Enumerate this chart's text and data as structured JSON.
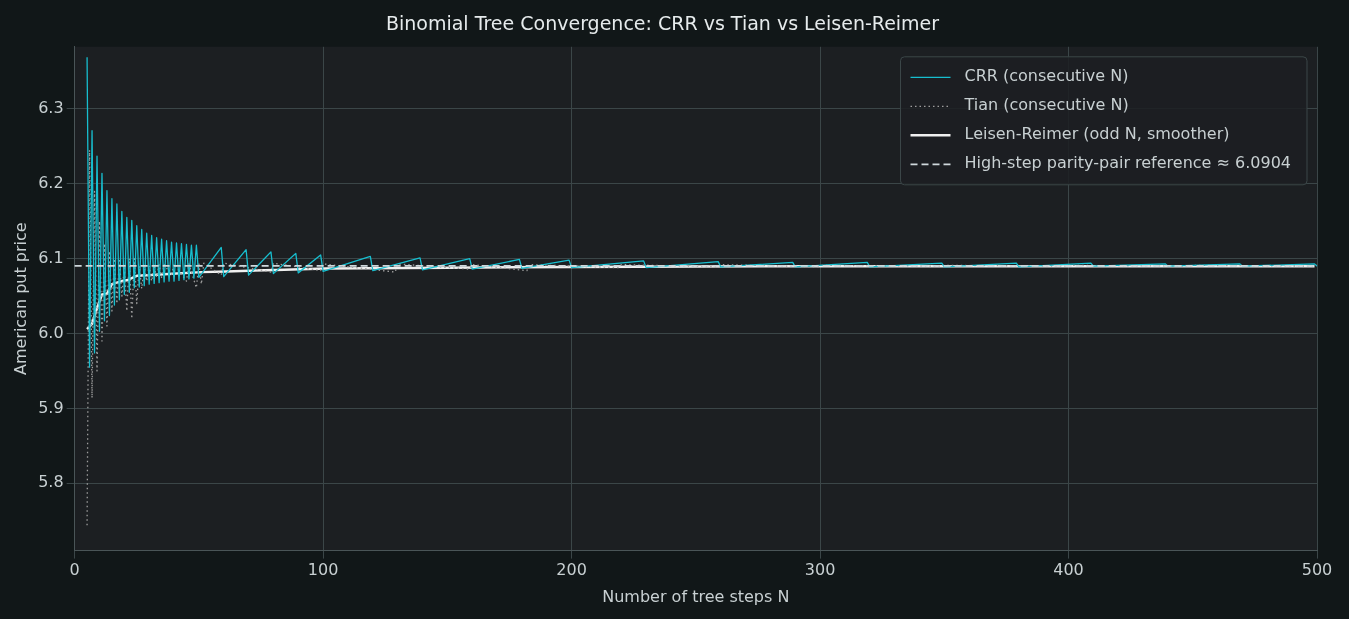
{
  "chart_data": {
    "type": "line",
    "title": "Binomial Tree Convergence: CRR vs Tian vs Leisen-Reimer",
    "xlabel": "Number of tree steps N",
    "ylabel": "American put price",
    "xlim": [
      0,
      500
    ],
    "xticks": [
      0,
      100,
      200,
      300,
      400,
      500
    ],
    "ylim": [
      5.71,
      6.383
    ],
    "yticks": [
      5.8,
      5.9,
      {
        "value": 6.0,
        "label": "6.0"
      },
      6.1,
      6.2,
      6.3
    ],
    "grid": true,
    "legend": "top right",
    "marker": "none",
    "series": [
      {
        "name": "CRR (consecutive N)",
        "color": "#17becf",
        "line_style": "solid",
        "x": [
          5,
          6,
          7,
          8,
          9,
          10,
          11,
          12,
          13,
          14,
          15,
          16,
          17,
          18,
          19,
          20,
          21,
          22,
          23,
          24,
          25,
          26,
          27,
          28,
          29,
          30,
          31,
          32,
          33,
          34,
          35,
          36,
          37,
          38,
          39,
          40,
          41,
          42,
          43,
          44,
          45,
          46,
          47,
          48,
          49,
          50,
          59,
          60,
          69,
          70,
          79,
          80,
          89,
          90,
          99,
          100,
          119,
          120,
          139,
          140,
          159,
          160,
          179,
          180,
          199,
          200,
          229,
          230,
          259,
          260,
          289,
          290,
          319,
          320,
          349,
          350,
          379,
          380,
          409,
          410,
          439,
          440,
          469,
          470,
          499,
          500
        ],
        "values": [
          6.369,
          5.955,
          6.271,
          5.974,
          6.237,
          6.003,
          6.214,
          6.017,
          6.191,
          6.024,
          6.18,
          6.038,
          6.173,
          6.045,
          6.163,
          6.052,
          6.155,
          6.055,
          6.151,
          6.061,
          6.144,
          6.062,
          6.139,
          6.064,
          6.134,
          6.066,
          6.131,
          6.067,
          6.128,
          6.068,
          6.126,
          6.069,
          6.124,
          6.07,
          6.122,
          6.07,
          6.121,
          6.071,
          6.12,
          6.072,
          6.119,
          6.073,
          6.118,
          6.074,
          6.118,
          6.075,
          6.115,
          6.076,
          6.112,
          6.078,
          6.109,
          6.08,
          6.107,
          6.081,
          6.105,
          6.083,
          6.103,
          6.084,
          6.101,
          6.085,
          6.1,
          6.086,
          6.099,
          6.087,
          6.098,
          6.088,
          6.097,
          6.088,
          6.096,
          6.089,
          6.095,
          6.089,
          6.095,
          6.089,
          6.094,
          6.089,
          6.094,
          6.089,
          6.094,
          6.09,
          6.093,
          6.09,
          6.093,
          6.09,
          6.093,
          6.09
        ]
      },
      {
        "name": "Tian (consecutive N)",
        "color": "#9e9e9e",
        "line_style": "dotted",
        "x": [
          5,
          6,
          7,
          8,
          9,
          10,
          11,
          12,
          13,
          14,
          15,
          16,
          17,
          18,
          19,
          20,
          21,
          22,
          23,
          24,
          25,
          26,
          27,
          28,
          29,
          30,
          31,
          32,
          33,
          34,
          35,
          36,
          39,
          40,
          45,
          46,
          49,
          50,
          51,
          52,
          59,
          60,
          79,
          80,
          99,
          100,
          129,
          130,
          159,
          160,
          182,
          183,
          219,
          220,
          259,
          260,
          299,
          300,
          349,
          350,
          399,
          400,
          449,
          450,
          499,
          500
        ],
        "values": [
          5.744,
          6.245,
          5.914,
          6.19,
          5.95,
          6.15,
          5.99,
          6.12,
          6.01,
          6.11,
          6.03,
          6.1,
          6.04,
          6.1,
          6.05,
          6.09,
          6.03,
          6.1,
          6.02,
          6.1,
          6.04,
          6.09,
          6.06,
          6.09,
          6.07,
          6.09,
          6.07,
          6.09,
          6.075,
          6.092,
          6.075,
          6.092,
          6.078,
          6.093,
          6.07,
          6.093,
          6.061,
          6.093,
          6.066,
          6.094,
          6.078,
          6.094,
          6.082,
          6.094,
          6.084,
          6.093,
          6.082,
          6.093,
          6.086,
          6.092,
          6.084,
          6.092,
          6.088,
          6.092,
          6.089,
          6.092,
          6.089,
          6.091,
          6.09,
          6.091,
          6.09,
          6.091,
          6.09,
          6.091,
          6.09,
          6.091
        ]
      },
      {
        "name": "Leisen-Reimer (odd N, smoother)",
        "color": "#f0f0f0",
        "line_style": "solid",
        "x": [
          5,
          7,
          9,
          11,
          13,
          15,
          17,
          19,
          21,
          25,
          31,
          41,
          51,
          61,
          81,
          101,
          151,
          201,
          301,
          401,
          499
        ],
        "values": [
          6.006,
          6.013,
          6.034,
          6.052,
          6.053,
          6.066,
          6.068,
          6.07,
          6.071,
          6.077,
          6.078,
          6.08,
          6.082,
          6.083,
          6.085,
          6.087,
          6.088,
          6.089,
          6.09,
          6.09,
          6.09
        ]
      }
    ],
    "ref_lines": [
      {
        "axis": "y",
        "value": 6.0904,
        "label": "High-step parity-pair reference ≈ 6.0904",
        "color": "#cfd8dc",
        "line_style": "dashed"
      }
    ]
  }
}
